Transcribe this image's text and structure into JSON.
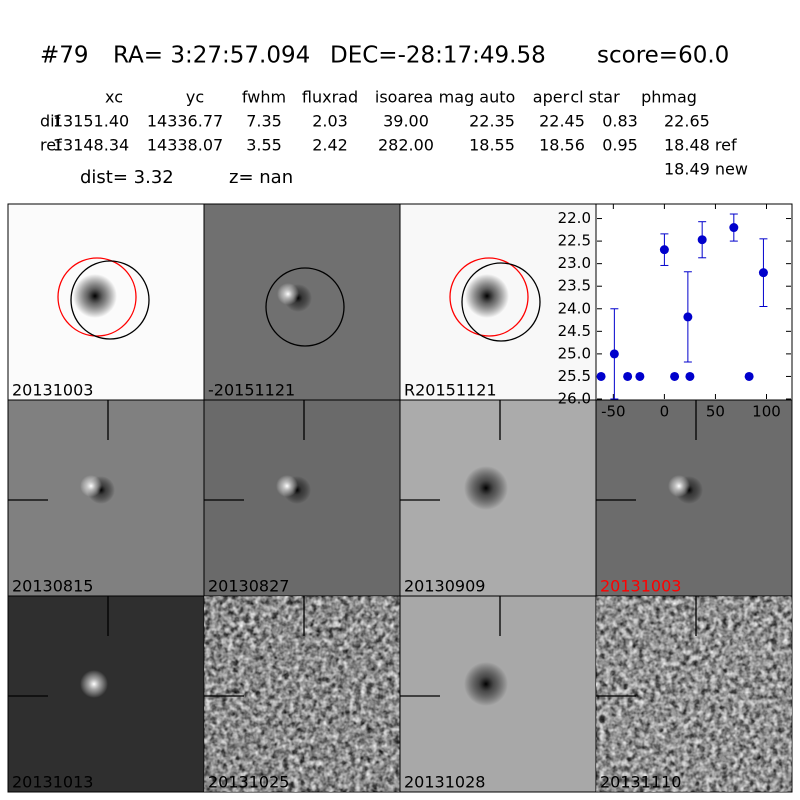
{
  "header": {
    "id": "#79",
    "ra": "RA= 3:27:57.094",
    "dec": "DEC=-28:17:49.58",
    "score": "score=60.0"
  },
  "table": {
    "columns": [
      "xc",
      "yc",
      "fwhm",
      "fluxrad",
      "isoarea",
      "mag auto",
      "aper",
      "cl star",
      "phmag"
    ],
    "rows": [
      [
        "dif",
        "13151.40",
        "14336.77",
        "7.35",
        "2.03",
        "39.00",
        "22.35",
        "22.45",
        "0.83",
        "22.65"
      ],
      [
        "ref",
        "13148.34",
        "14338.07",
        "3.55",
        "2.42",
        "282.00",
        "18.55",
        "18.56",
        "0.95",
        "18.48 ref"
      ]
    ],
    "extra": "18.49 new"
  },
  "dist": "dist=  3.32",
  "z": "z=   nan",
  "panels": [
    {
      "label": "20131003",
      "label_color": "#000000"
    },
    {
      "label": "-20151121",
      "label_color": "#000000"
    },
    {
      "label": "R20151121",
      "label_color": "#000000"
    },
    {
      "label": "20130815",
      "label_color": "#000000"
    },
    {
      "label": "20130827",
      "label_color": "#000000"
    },
    {
      "label": "20130909",
      "label_color": "#000000"
    },
    {
      "label": "20131003",
      "label_color": "#ff0000"
    },
    {
      "label": "20131013",
      "label_color": "#000000"
    },
    {
      "label": "20131025",
      "label_color": "#000000"
    },
    {
      "label": "20131028",
      "label_color": "#000000"
    },
    {
      "label": "20131110",
      "label_color": "#000000"
    }
  ],
  "chart_data": {
    "type": "scatter",
    "color": "#0000cc",
    "x": [
      -62,
      -49,
      -36,
      -24,
      0,
      10,
      23,
      25,
      37,
      68,
      83,
      97
    ],
    "values": [
      25.5,
      25.0,
      25.5,
      25.5,
      22.69,
      25.5,
      24.18,
      25.5,
      22.47,
      22.2,
      25.5,
      23.2
    ],
    "errors": [
      null,
      1.0,
      null,
      null,
      0.35,
      null,
      1.0,
      null,
      0.4,
      0.3,
      null,
      0.75
    ],
    "xlim": [
      -66,
      124
    ],
    "ylim": [
      26.0,
      21.7
    ],
    "xticks": [
      -50,
      0,
      50,
      100
    ],
    "yticks": [
      {
        "value": 22,
        "label": "22.0"
      },
      {
        "value": 22.5,
        "label": "22.5"
      },
      {
        "value": 23,
        "label": "23.0"
      },
      {
        "value": 23.5,
        "label": "23.5"
      },
      {
        "value": 24,
        "label": "24.0"
      },
      {
        "value": 24.5,
        "label": "24.5"
      },
      {
        "value": 25,
        "label": "25.0"
      },
      {
        "value": 25.5,
        "label": "25.5"
      },
      {
        "value": 26,
        "label": "26.0"
      }
    ]
  }
}
